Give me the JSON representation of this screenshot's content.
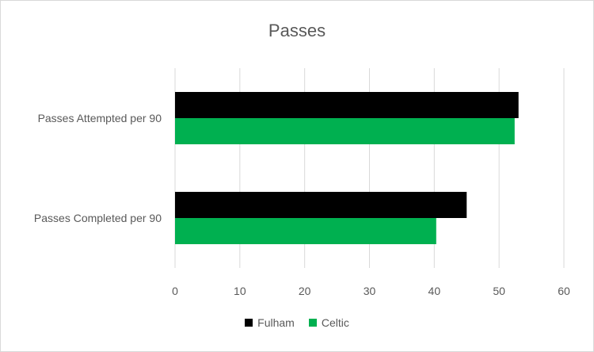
{
  "chart_data": {
    "type": "bar",
    "orientation": "horizontal",
    "title": "Passes",
    "categories": [
      "Passes Attempted per 90",
      "Passes Completed per 90"
    ],
    "series": [
      {
        "name": "Fulham",
        "color": "#000000",
        "values": [
          53,
          45
        ]
      },
      {
        "name": "Celtic",
        "color": "#00b050",
        "values": [
          52.4,
          40.3
        ]
      }
    ],
    "xlim": [
      0,
      60
    ],
    "xticks": [
      0,
      10,
      20,
      30,
      40,
      50,
      60
    ],
    "grid": true,
    "legend_position": "bottom"
  }
}
